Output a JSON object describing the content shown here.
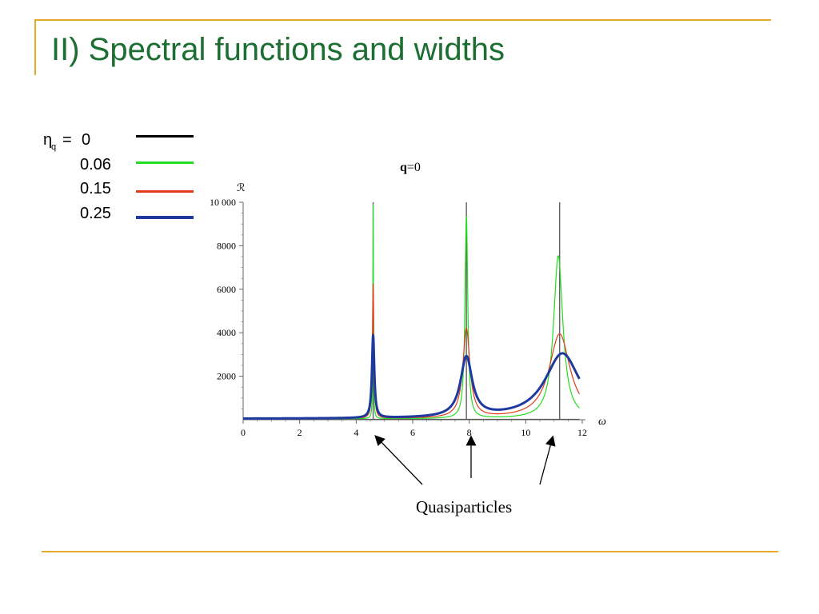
{
  "slide": {
    "title": "II) Spectral functions and widths",
    "caption": "Quasiparticles",
    "accent_color": "#e8a92c",
    "title_color": "#1c6e33"
  },
  "legend": {
    "eta_symbol": "η",
    "eta_subscript": "q",
    "equals": "=",
    "entries": [
      {
        "value": "0",
        "color": "#000000"
      },
      {
        "value": "0.06",
        "color": "#22dd22"
      },
      {
        "value": "0.15",
        "color": "#e03c1c"
      },
      {
        "value": "0.25",
        "color": "#1f3a9e"
      }
    ]
  },
  "chart_data": {
    "type": "line",
    "title": "q=0",
    "title_bold": "q",
    "title_rest": "=0",
    "ylabel": "ℛ",
    "xlabel": "ω",
    "xlim": [
      0,
      12
    ],
    "ylim": [
      0,
      10000
    ],
    "xticks": [
      0,
      2,
      4,
      6,
      8,
      10,
      12
    ],
    "yticks": [
      2000,
      4000,
      6000,
      8000,
      10000
    ],
    "ytick_labels": [
      "2000",
      "4000",
      "6000",
      "8000",
      "10 000"
    ],
    "grid": false,
    "quasiparticle_peaks": [
      4.6,
      7.9,
      11.2
    ],
    "series": [
      {
        "color": "#555555",
        "width": 1.3,
        "kind": "delta",
        "peaks": [
          4.6,
          7.9,
          11.2
        ]
      },
      {
        "color": "#22dd22",
        "width": 1.2,
        "kind": "lorentz",
        "x_end": 11.9,
        "peaks": [
          {
            "x0": 4.6,
            "gamma": 0.012,
            "height": 10000
          },
          {
            "x0": 7.9,
            "gamma": 0.06,
            "height": 9300
          },
          {
            "x0": 11.15,
            "gamma": 0.2,
            "height": 7500
          }
        ],
        "samples": [
          [
            0,
            60
          ],
          [
            4,
            150
          ],
          [
            4.6,
            10000
          ],
          [
            7.9,
            9300
          ],
          [
            9.1,
            200
          ],
          [
            11.15,
            7500
          ],
          [
            11.9,
            800
          ]
        ]
      },
      {
        "color": "#e03c1c",
        "width": 1.2,
        "kind": "lorentz",
        "x_end": 11.9,
        "peaks": [
          {
            "x0": 4.6,
            "gamma": 0.03,
            "height": 6200
          },
          {
            "x0": 7.9,
            "gamma": 0.15,
            "height": 4100
          },
          {
            "x0": 11.2,
            "gamma": 0.45,
            "height": 3900
          }
        ],
        "samples": [
          [
            0,
            60
          ],
          [
            4,
            250
          ],
          [
            4.6,
            6200
          ],
          [
            7.9,
            4100
          ],
          [
            9.2,
            450
          ],
          [
            11.2,
            3900
          ],
          [
            11.9,
            1400
          ]
        ]
      },
      {
        "color": "#1f3a9e",
        "width": 3,
        "kind": "lorentz",
        "x_end": 11.9,
        "peaks": [
          {
            "x0": 4.6,
            "gamma": 0.05,
            "height": 3800
          },
          {
            "x0": 7.9,
            "gamma": 0.25,
            "height": 2750
          },
          {
            "x0": 11.3,
            "gamma": 0.75,
            "height": 3000
          }
        ],
        "samples": [
          [
            0,
            80
          ],
          [
            4,
            350
          ],
          [
            4.6,
            3800
          ],
          [
            7.9,
            2750
          ],
          [
            9.2,
            500
          ],
          [
            11.3,
            3000
          ],
          [
            11.9,
            1900
          ]
        ]
      }
    ]
  }
}
